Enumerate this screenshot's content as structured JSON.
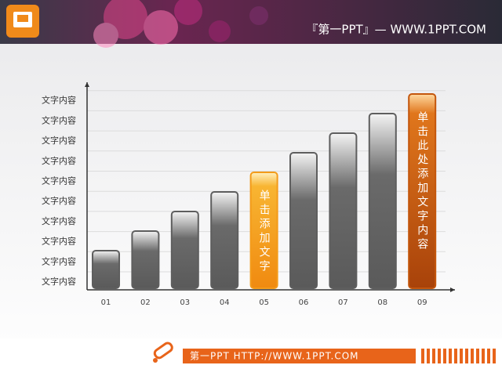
{
  "header": {
    "text": "『第一PPT』— WWW.1PPT.COM"
  },
  "footer": {
    "text": "第一PPT HTTP://WWW.1PPT.COM"
  },
  "chart_data": {
    "type": "bar",
    "categories": [
      "01",
      "02",
      "03",
      "04",
      "05",
      "06",
      "07",
      "08",
      "09"
    ],
    "values": [
      2,
      3,
      4,
      5,
      6,
      7,
      8,
      9,
      10
    ],
    "ylim": [
      0,
      10.6
    ],
    "y_labels": [
      "文字内容",
      "文字内容",
      "文字内容",
      "文字内容",
      "文字内容",
      "文字内容",
      "文字内容",
      "文字内容",
      "文字内容",
      "文字内容"
    ],
    "colors": [
      "#5e5e5e",
      "#5e5e5e",
      "#5e5e5e",
      "#5e5e5e",
      "#f39b1a",
      "#5e5e5e",
      "#5e5e5e",
      "#5e5e5e",
      "#c4560c"
    ],
    "bar_labels": [
      null,
      null,
      null,
      null,
      "单击添加文字",
      null,
      null,
      null,
      "单击此处添加文字内容"
    ]
  }
}
